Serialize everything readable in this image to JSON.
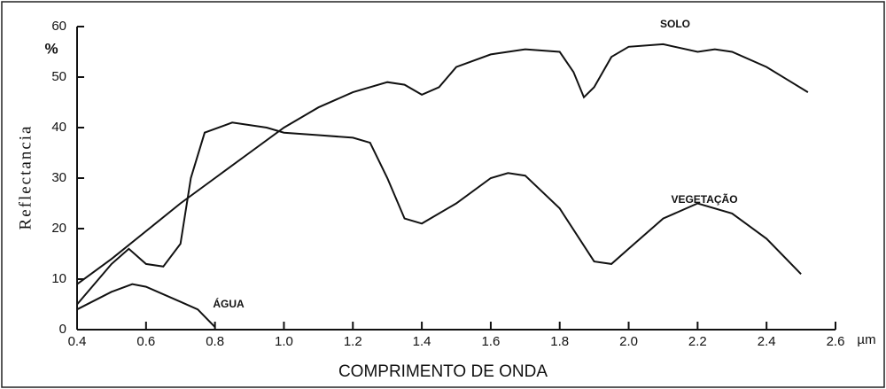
{
  "chart_data": {
    "type": "line",
    "y_label": "Reflectancia",
    "y_unit": "%",
    "x_label": "COMPRIMENTO DE ONDA",
    "x_unit": "µm",
    "xlim": [
      0.4,
      2.6
    ],
    "xticks": [
      {
        "value": 0.4,
        "label": "0.4"
      },
      {
        "value": 0.6,
        "label": "0.6"
      },
      {
        "value": 0.8,
        "label": "0.8"
      },
      {
        "value": 1.0,
        "label": "1.0"
      },
      {
        "value": 1.2,
        "label": "1.2"
      },
      {
        "value": 1.4,
        "label": "1.4"
      },
      {
        "value": 1.6,
        "label": "1.6"
      },
      {
        "value": 1.8,
        "label": "1.8"
      },
      {
        "value": 2.0,
        "label": "2.0"
      },
      {
        "value": 2.2,
        "label": "2.2"
      },
      {
        "value": 2.4,
        "label": "2.4"
      },
      {
        "value": 2.6,
        "label": "2.6"
      }
    ],
    "ylim": [
      0,
      60
    ],
    "yticks": [
      0,
      10,
      20,
      30,
      40,
      50,
      60
    ],
    "series": [
      {
        "name": "SOLO",
        "color": "#111111",
        "x": [
          0.4,
          0.5,
          0.6,
          0.7,
          0.8,
          0.9,
          1.0,
          1.1,
          1.2,
          1.3,
          1.35,
          1.4,
          1.45,
          1.5,
          1.6,
          1.7,
          1.8,
          1.84,
          1.87,
          1.9,
          1.95,
          2.0,
          2.1,
          2.2,
          2.25,
          2.3,
          2.4,
          2.52
        ],
        "values": [
          9,
          14,
          19.5,
          25,
          30,
          35,
          40,
          44,
          47,
          49,
          48.5,
          46.5,
          48,
          52,
          54.5,
          55.5,
          55,
          51,
          46,
          48,
          54,
          56,
          56.5,
          55,
          55.5,
          55,
          52,
          47
        ]
      },
      {
        "name": "VEGETAÇÃO",
        "color": "#111111",
        "x": [
          0.4,
          0.5,
          0.55,
          0.6,
          0.65,
          0.7,
          0.73,
          0.77,
          0.85,
          0.95,
          1.0,
          1.1,
          1.2,
          1.25,
          1.3,
          1.35,
          1.4,
          1.5,
          1.6,
          1.65,
          1.7,
          1.8,
          1.9,
          1.95,
          2.0,
          2.1,
          2.2,
          2.3,
          2.4,
          2.5
        ],
        "values": [
          5,
          13,
          16,
          13,
          12.5,
          17,
          30,
          39,
          41,
          40,
          39,
          38.5,
          38,
          37,
          30,
          22,
          21,
          25,
          30,
          31,
          30.5,
          24,
          13.5,
          13,
          16,
          22,
          25,
          23,
          18,
          11
        ]
      },
      {
        "name": "ÁGUA",
        "color": "#111111",
        "x": [
          0.4,
          0.5,
          0.56,
          0.6,
          0.7,
          0.75,
          0.8
        ],
        "values": [
          4,
          7.5,
          9,
          8.5,
          5.5,
          4,
          0.5
        ]
      }
    ]
  }
}
